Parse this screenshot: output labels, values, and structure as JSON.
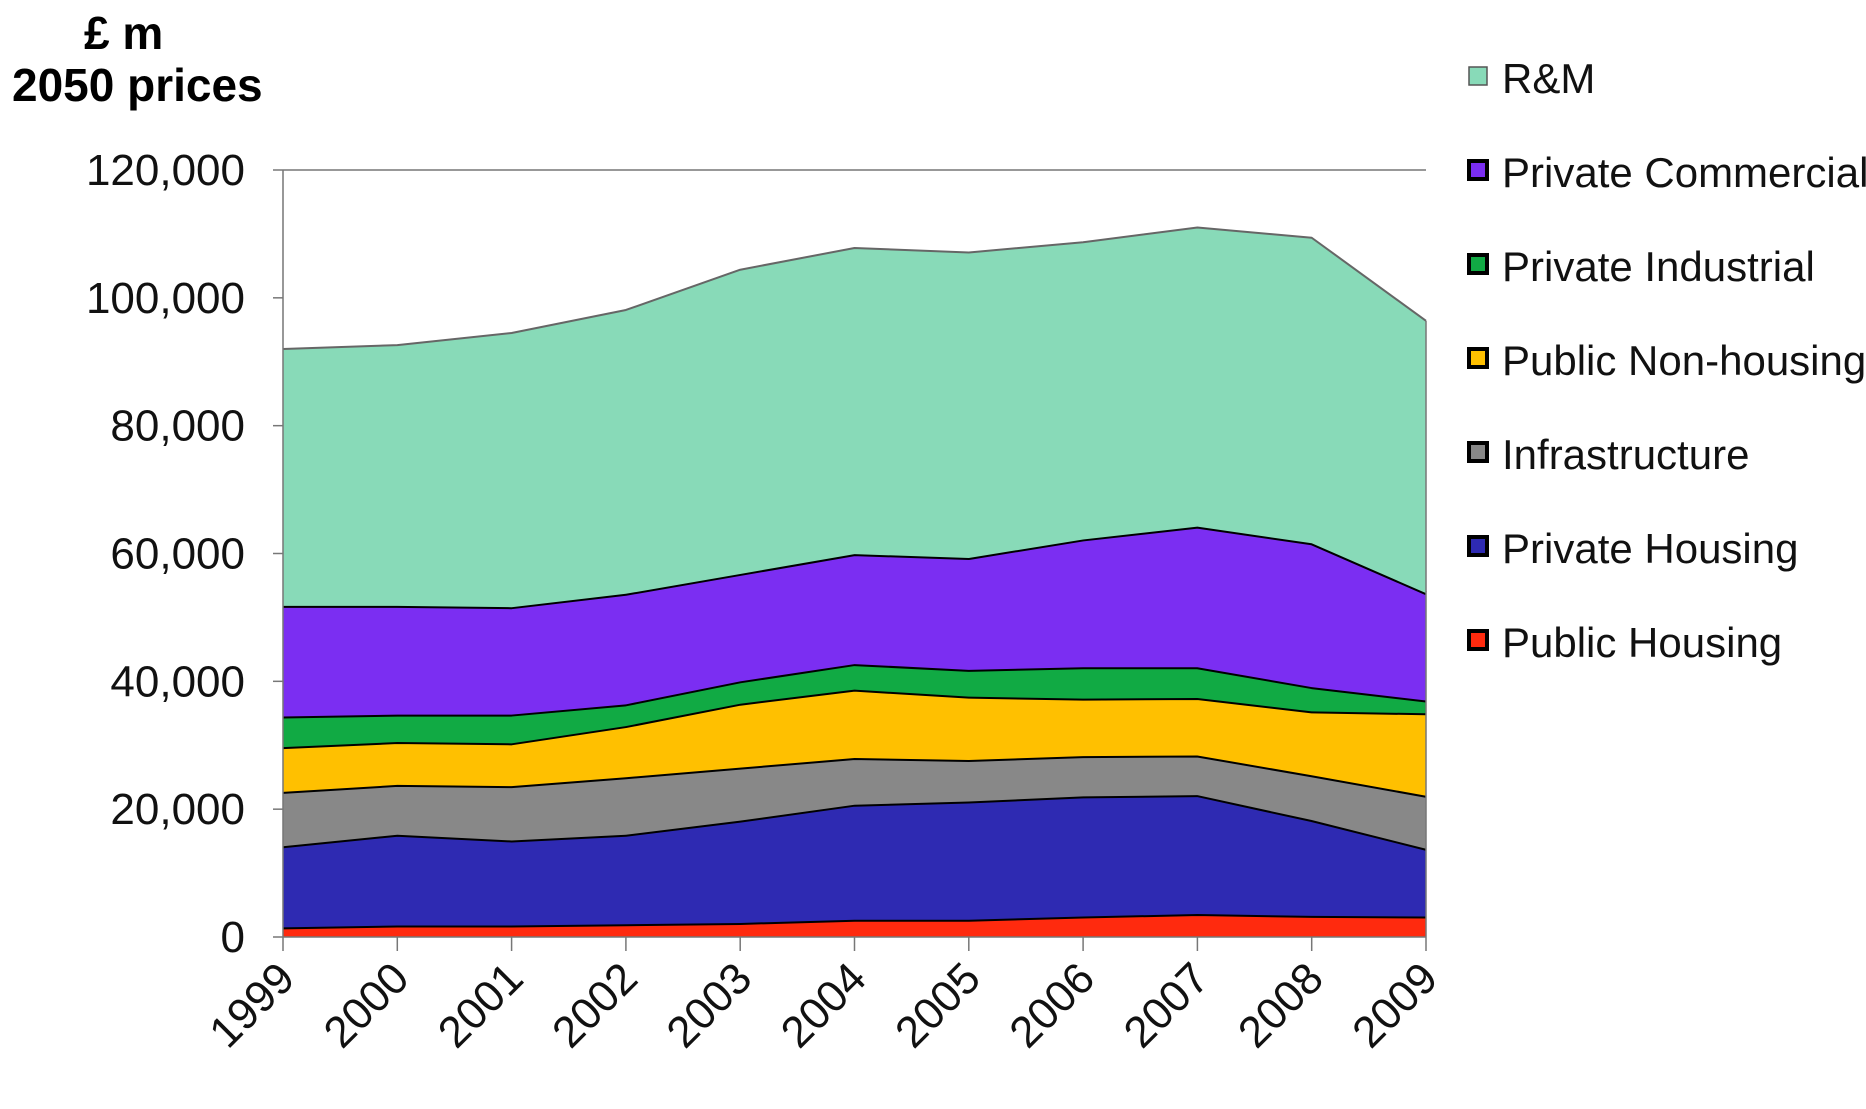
{
  "header": {
    "unit_line1": "£ m",
    "unit_line2": "2050 prices"
  },
  "chart_data": {
    "type": "area",
    "stacked": true,
    "title": "",
    "xlabel": "",
    "ylabel": "£ m 2050 prices",
    "x": [
      "1999",
      "2000",
      "2001",
      "2002",
      "2003",
      "2004",
      "2005",
      "2006",
      "2007",
      "2008",
      "2009"
    ],
    "ylim": [
      0,
      120000
    ],
    "yticks": [
      "0",
      "20,000",
      "40,000",
      "60,000",
      "80,000",
      "100,000",
      "120,000"
    ],
    "ytick_values": [
      0,
      20000,
      40000,
      60000,
      80000,
      100000,
      120000
    ],
    "legend_position": "right",
    "series": [
      {
        "name": "Public Housing",
        "color": "#ff2a0e",
        "values": [
          1500,
          1800,
          1800,
          2000,
          2200,
          2700,
          2700,
          3200,
          3600,
          3300,
          3200
        ]
      },
      {
        "name": "Private Housing",
        "color": "#2e2ab2",
        "values": [
          12700,
          14200,
          13300,
          14000,
          16000,
          18000,
          18500,
          18800,
          18600,
          15000,
          10600
        ]
      },
      {
        "name": "Infrastructure",
        "color": "#888888",
        "values": [
          8500,
          7800,
          8500,
          9000,
          8300,
          7300,
          6500,
          6300,
          6200,
          7000,
          8300
        ]
      },
      {
        "name": "Public Non-housing",
        "color": "#ffc000",
        "values": [
          7000,
          6700,
          6700,
          8000,
          10000,
          10700,
          9900,
          9000,
          9000,
          10000,
          12900
        ]
      },
      {
        "name": "Private Industrial",
        "color": "#11aa44",
        "values": [
          4800,
          4300,
          4500,
          3400,
          3500,
          4000,
          4200,
          4900,
          4800,
          3800,
          2000
        ]
      },
      {
        "name": "Private Commercial",
        "color": "#7b2ef2",
        "values": [
          17300,
          17000,
          16800,
          17300,
          16800,
          17200,
          17500,
          20000,
          22000,
          22500,
          16800
        ]
      },
      {
        "name": "R&M",
        "color": "#88dab8",
        "values": [
          40200,
          40800,
          42900,
          44400,
          47600,
          47900,
          47800,
          46500,
          46800,
          47800,
          42600
        ]
      }
    ]
  }
}
